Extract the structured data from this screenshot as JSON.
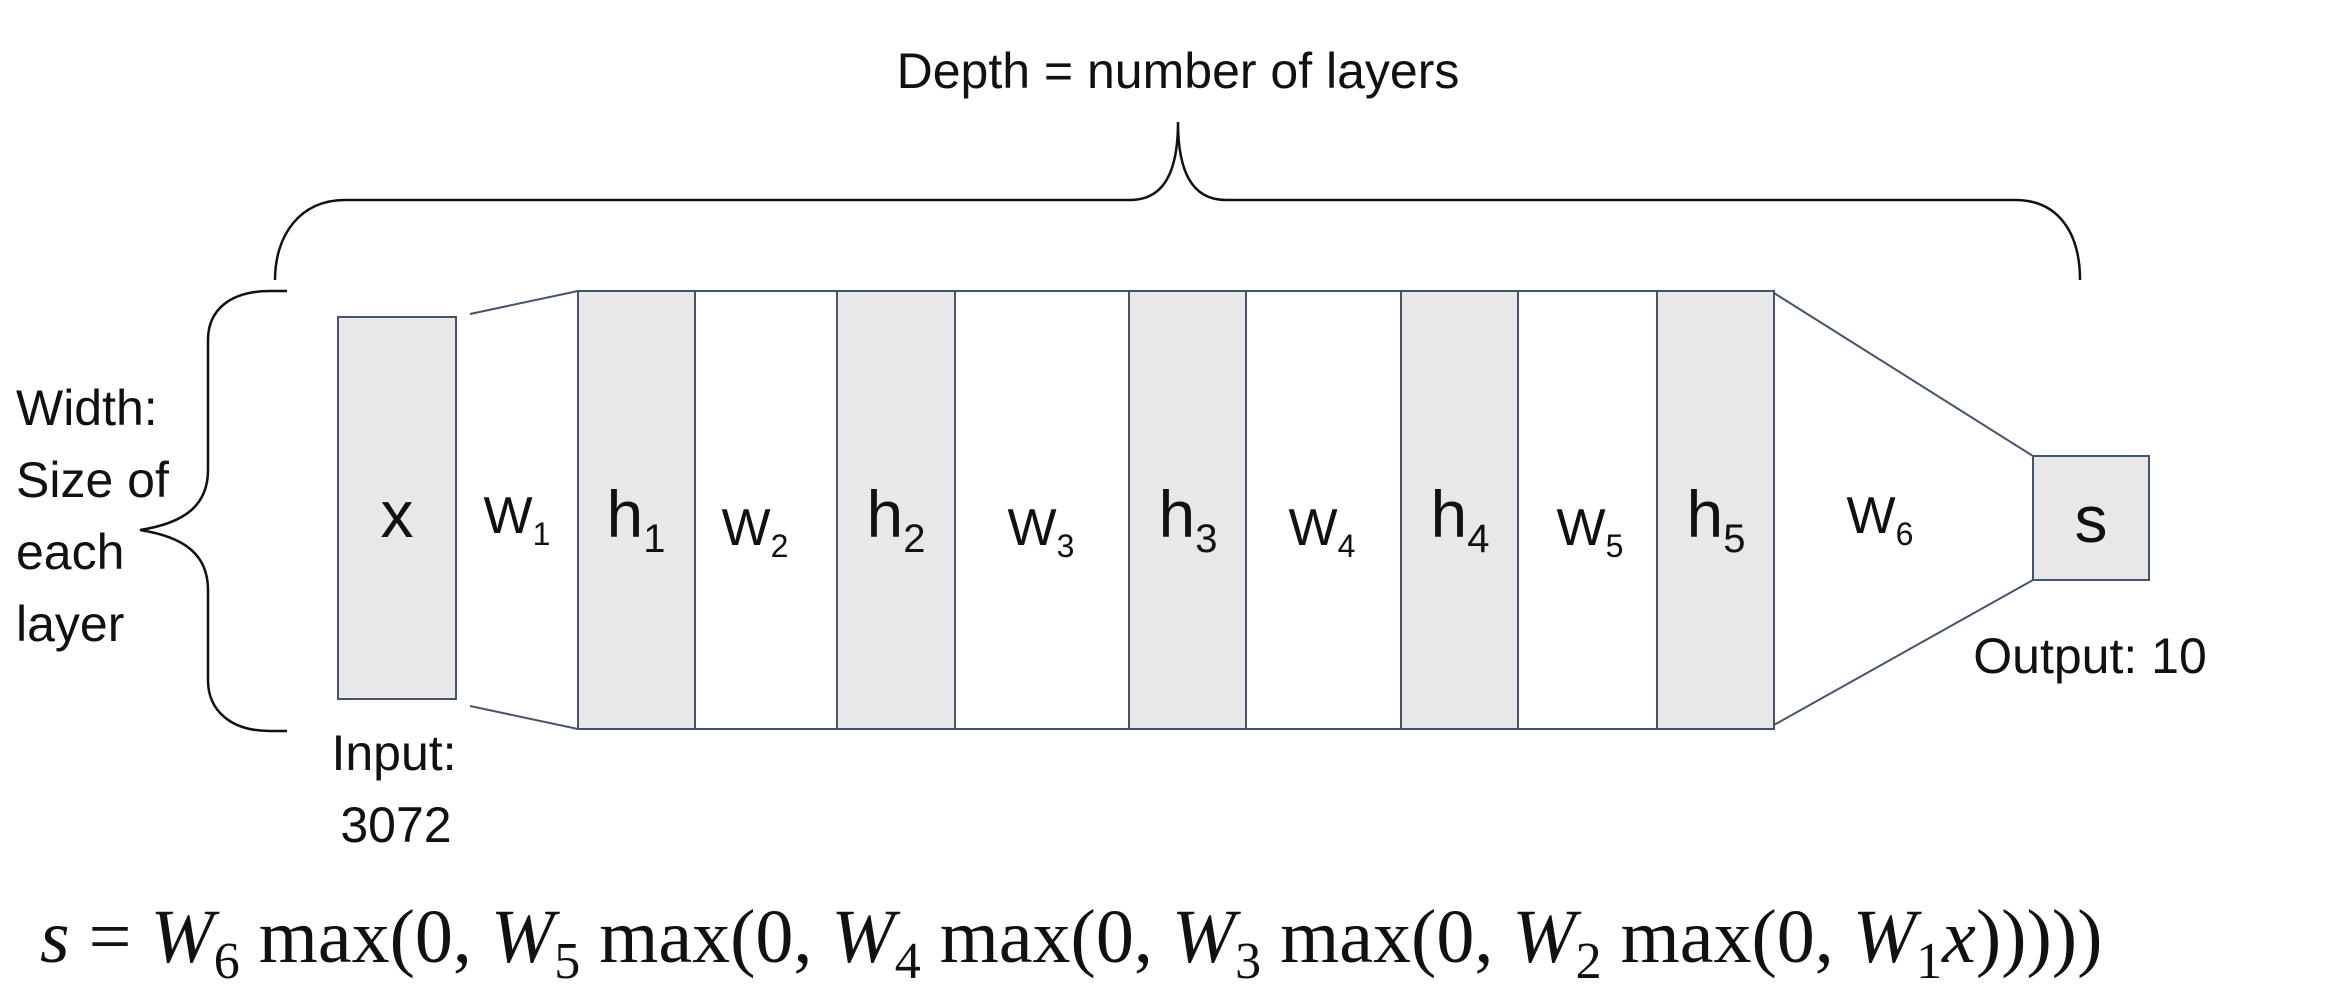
{
  "depth_label": "Depth = number of layers",
  "width_label": [
    "Width:",
    "Size of",
    "each",
    "layer"
  ],
  "input_label": [
    "Input:",
    "3072"
  ],
  "output_label": "Output: 10",
  "nodes": [
    {
      "base": "x",
      "sub": ""
    },
    {
      "base": "h",
      "sub": "1"
    },
    {
      "base": "h",
      "sub": "2"
    },
    {
      "base": "h",
      "sub": "3"
    },
    {
      "base": "h",
      "sub": "4"
    },
    {
      "base": "h",
      "sub": "5"
    },
    {
      "base": "s",
      "sub": ""
    }
  ],
  "weights": [
    {
      "base": "W",
      "sub": "1"
    },
    {
      "base": "W",
      "sub": "2"
    },
    {
      "base": "W",
      "sub": "3"
    },
    {
      "base": "W",
      "sub": "4"
    },
    {
      "base": "W",
      "sub": "5"
    },
    {
      "base": "W",
      "sub": "6"
    }
  ],
  "formula": [
    {
      "t": "s",
      "i": true
    },
    {
      "t": " = "
    },
    {
      "t": "W",
      "i": true
    },
    {
      "t": "6",
      "sub": true
    },
    {
      "t": " max(0, "
    },
    {
      "t": "W",
      "i": true
    },
    {
      "t": "5",
      "sub": true
    },
    {
      "t": " max(0, "
    },
    {
      "t": "W",
      "i": true
    },
    {
      "t": "4",
      "sub": true
    },
    {
      "t": " max(0, "
    },
    {
      "t": "W",
      "i": true
    },
    {
      "t": "3",
      "sub": true
    },
    {
      "t": " max(0, "
    },
    {
      "t": "W",
      "i": true
    },
    {
      "t": "2",
      "sub": true
    },
    {
      "t": " max(0, "
    },
    {
      "t": "W",
      "i": true
    },
    {
      "t": "1",
      "sub": true
    },
    {
      "t": "x",
      "i": true
    },
    {
      "t": ")))))"
    }
  ]
}
